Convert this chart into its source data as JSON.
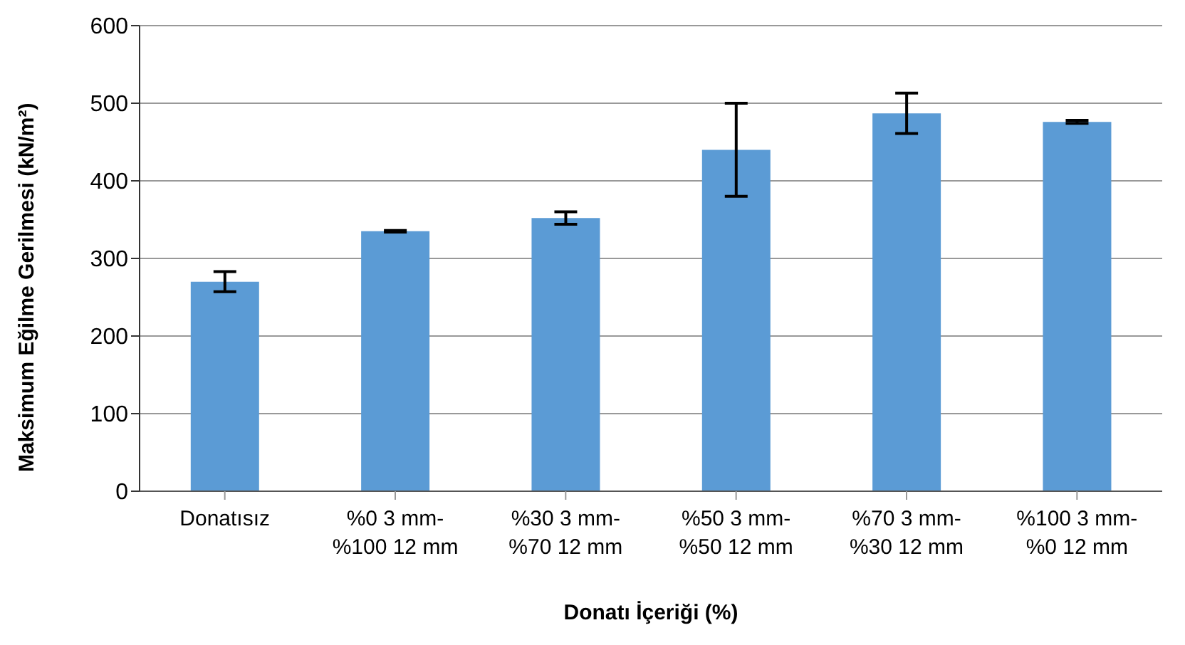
{
  "chart_data": {
    "type": "bar",
    "xlabel": "Donatı İçeriği (%)",
    "ylabel": "Maksimum Eğilme Gerilmesi  (kN/m²)",
    "categories": [
      "Donatısız",
      "%0 3 mm-\n%100 12 mm",
      "%30 3 mm-\n%70 12 mm",
      "%50 3 mm-\n%50 12 mm",
      "%70 3 mm-\n%30 12 mm",
      "%100 3 mm-\n%0 12 mm"
    ],
    "values": [
      270,
      335,
      352,
      440,
      487,
      476
    ],
    "errors": [
      13,
      1,
      8,
      60,
      26,
      2
    ],
    "color": "#5b9bd5",
    "ylim": [
      0,
      600
    ],
    "yticks": [
      0,
      100,
      200,
      300,
      400,
      500,
      600
    ],
    "grid": "y",
    "legend": false
  }
}
